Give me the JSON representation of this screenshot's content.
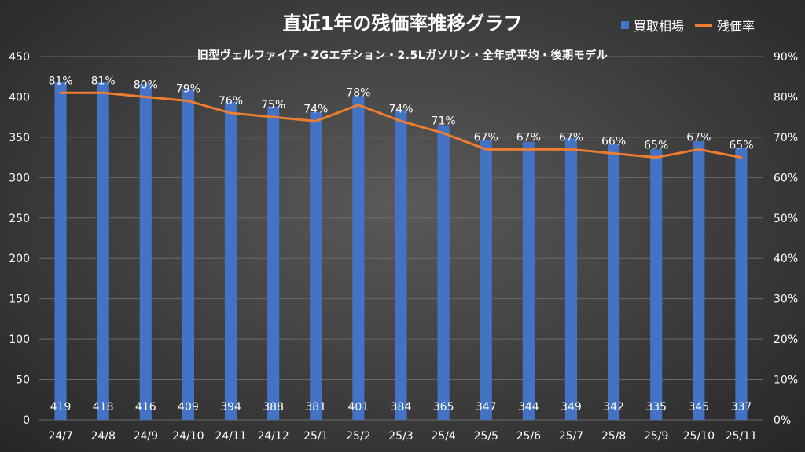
{
  "chart_data": {
    "type": "bar+line",
    "title": "直近1年の残価率推移グラフ",
    "subtitle": "旧型ヴェルファイア・ZGエデション・2.5Lガソリン・全年式平均・後期モデル",
    "categories": [
      "24/7",
      "24/8",
      "24/9",
      "24/10",
      "24/11",
      "24/12",
      "25/1",
      "25/2",
      "25/3",
      "25/4",
      "25/5",
      "25/6",
      "25/7",
      "25/8",
      "25/9",
      "25/10",
      "25/11"
    ],
    "series": [
      {
        "name": "買取相場",
        "type": "bar",
        "axis": "left",
        "color": "#4472c4",
        "values": [
          419,
          418,
          416,
          409,
          394,
          388,
          381,
          401,
          384,
          365,
          347,
          344,
          349,
          342,
          335,
          345,
          337
        ],
        "labels": [
          "419",
          "418",
          "416",
          "409",
          "394",
          "388",
          "381",
          "401",
          "384",
          "365",
          "347",
          "344",
          "349",
          "342",
          "335",
          "345",
          "337"
        ]
      },
      {
        "name": "残価率",
        "type": "line",
        "axis": "right",
        "color": "#ed7d31",
        "values": [
          81,
          81,
          80,
          79,
          76,
          75,
          74,
          78,
          74,
          71,
          67,
          67,
          67,
          66,
          65,
          67,
          65
        ],
        "labels": [
          "81%",
          "81%",
          "80%",
          "79%",
          "76%",
          "75%",
          "74%",
          "78%",
          "74%",
          "71%",
          "67%",
          "67%",
          "67%",
          "66%",
          "65%",
          "67%",
          "65%"
        ]
      }
    ],
    "y_left": {
      "lim": [
        0,
        450
      ],
      "ticks": [
        "0",
        "50",
        "100",
        "150",
        "200",
        "250",
        "300",
        "350",
        "400",
        "450"
      ]
    },
    "y_right": {
      "lim": [
        0,
        90
      ],
      "ticks": [
        "0%",
        "10%",
        "20%",
        "30%",
        "40%",
        "50%",
        "60%",
        "70%",
        "80%",
        "90%"
      ]
    },
    "grid": true,
    "legend_position": "top-right"
  }
}
